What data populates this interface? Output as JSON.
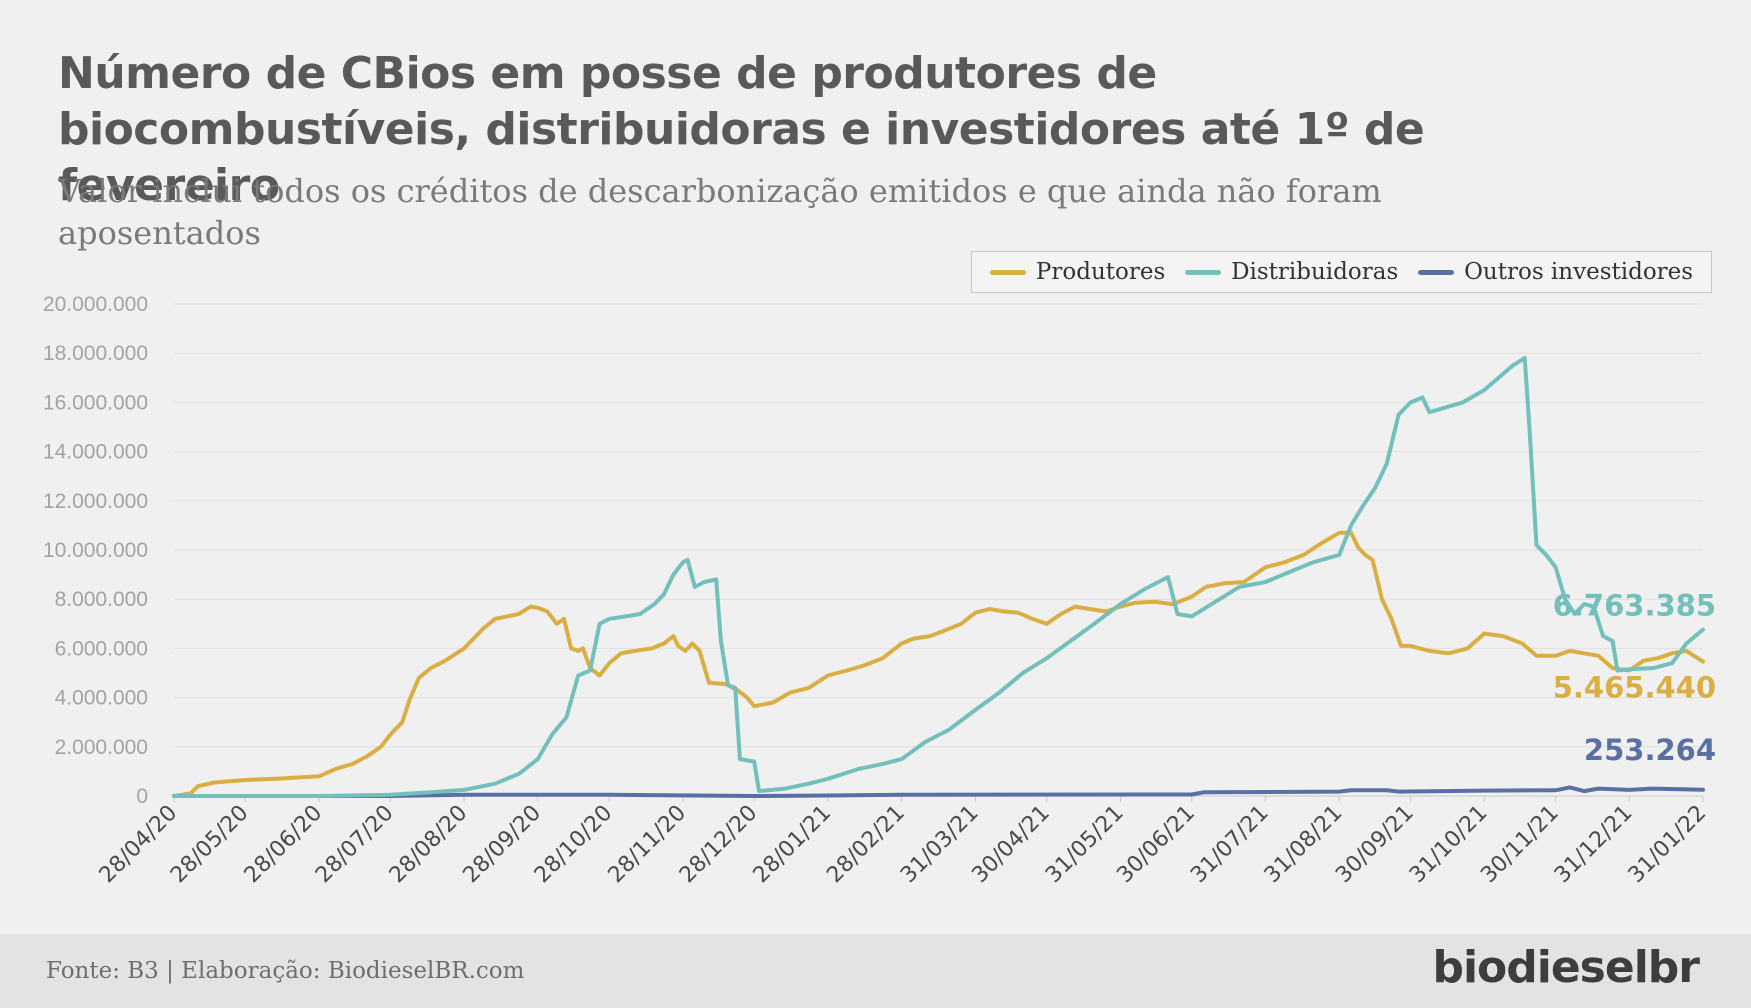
{
  "header": {
    "title": "Número de CBios em posse de produtores de biocombustíveis, distribuidoras e investidores até 1º de fevereiro",
    "subtitle": "Valor inclui todos os créditos de descarbonização emitidos e que ainda não foram aposentados"
  },
  "footer": {
    "source": "Fonte: B3 | Elaboração: BiodieselBR.com",
    "brand": "biodieselbr"
  },
  "chart_data": {
    "type": "line",
    "ylim": [
      0,
      20000000
    ],
    "yticks": [
      "0",
      "2.000.000",
      "4.000.000",
      "6.000.000",
      "8.000.000",
      "10.000.000",
      "12.000.000",
      "14.000.000",
      "16.000.000",
      "18.000.000",
      "20.000.000"
    ],
    "xticks": [
      "28/04/20",
      "28/05/20",
      "28/06/20",
      "28/07/20",
      "28/08/20",
      "28/09/20",
      "28/10/20",
      "28/11/20",
      "28/12/20",
      "28/01/21",
      "28/02/21",
      "31/03/21",
      "30/04/21",
      "31/05/21",
      "30/06/21",
      "31/07/21",
      "31/08/21",
      "30/09/21",
      "31/10/21",
      "30/11/21",
      "31/12/21",
      "31/01/22"
    ],
    "grid": true,
    "legend_position": "top-right",
    "series": [
      {
        "name": "Produtores",
        "color": "#d9ae43",
        "end_label": "5.465.440",
        "points": [
          [
            "28/04/20",
            0
          ],
          [
            "05/05/20",
            100000
          ],
          [
            "08/05/20",
            400000
          ],
          [
            "15/05/20",
            550000
          ],
          [
            "28/05/20",
            650000
          ],
          [
            "10/06/20",
            700000
          ],
          [
            "28/06/20",
            800000
          ],
          [
            "05/07/20",
            1100000
          ],
          [
            "12/07/20",
            1300000
          ],
          [
            "18/07/20",
            1600000
          ],
          [
            "24/07/20",
            2000000
          ],
          [
            "28/07/20",
            2500000
          ],
          [
            "02/08/20",
            3000000
          ],
          [
            "05/08/20",
            3900000
          ],
          [
            "09/08/20",
            4800000
          ],
          [
            "14/08/20",
            5200000
          ],
          [
            "20/08/20",
            5500000
          ],
          [
            "28/08/20",
            6000000
          ],
          [
            "05/09/20",
            6800000
          ],
          [
            "10/09/20",
            7200000
          ],
          [
            "20/09/20",
            7400000
          ],
          [
            "25/09/20",
            7700000
          ],
          [
            "28/09/20",
            7650000
          ],
          [
            "02/10/20",
            7500000
          ],
          [
            "06/10/20",
            7000000
          ],
          [
            "09/10/20",
            7200000
          ],
          [
            "12/10/20",
            6000000
          ],
          [
            "15/10/20",
            5900000
          ],
          [
            "17/10/20",
            6000000
          ],
          [
            "20/10/20",
            5200000
          ],
          [
            "24/10/20",
            4900000
          ],
          [
            "28/10/20",
            5400000
          ],
          [
            "02/11/20",
            5800000
          ],
          [
            "08/11/20",
            5900000
          ],
          [
            "15/11/20",
            6000000
          ],
          [
            "20/11/20",
            6200000
          ],
          [
            "24/11/20",
            6500000
          ],
          [
            "26/11/20",
            6100000
          ],
          [
            "29/11/20",
            5900000
          ],
          [
            "02/12/20",
            6200000
          ],
          [
            "05/12/20",
            5900000
          ],
          [
            "09/12/20",
            4600000
          ],
          [
            "16/12/20",
            4550000
          ],
          [
            "21/12/20",
            4300000
          ],
          [
            "25/12/20",
            4000000
          ],
          [
            "28/12/20",
            3650000
          ],
          [
            "05/01/21",
            3800000
          ],
          [
            "12/01/21",
            4200000
          ],
          [
            "20/01/21",
            4400000
          ],
          [
            "28/01/21",
            4900000
          ],
          [
            "05/02/21",
            5100000
          ],
          [
            "12/02/21",
            5300000
          ],
          [
            "20/02/21",
            5600000
          ],
          [
            "28/02/21",
            6200000
          ],
          [
            "05/03/21",
            6400000
          ],
          [
            "12/03/21",
            6500000
          ],
          [
            "20/03/21",
            6800000
          ],
          [
            "25/03/21",
            7000000
          ],
          [
            "31/03/21",
            7450000
          ],
          [
            "06/04/21",
            7600000
          ],
          [
            "12/04/21",
            7500000
          ],
          [
            "18/04/21",
            7450000
          ],
          [
            "24/04/21",
            7200000
          ],
          [
            "30/04/21",
            7000000
          ],
          [
            "06/05/21",
            7400000
          ],
          [
            "12/05/21",
            7700000
          ],
          [
            "18/05/21",
            7600000
          ],
          [
            "25/05/21",
            7500000
          ],
          [
            "31/05/21",
            7700000
          ],
          [
            "06/06/21",
            7850000
          ],
          [
            "14/06/21",
            7900000
          ],
          [
            "22/06/21",
            7800000
          ],
          [
            "30/06/21",
            8100000
          ],
          [
            "06/07/21",
            8500000
          ],
          [
            "14/07/21",
            8650000
          ],
          [
            "22/07/21",
            8700000
          ],
          [
            "31/07/21",
            9300000
          ],
          [
            "08/08/21",
            9500000
          ],
          [
            "16/08/21",
            9800000
          ],
          [
            "24/08/21",
            10300000
          ],
          [
            "31/08/21",
            10700000
          ],
          [
            "05/09/21",
            10700000
          ],
          [
            "08/09/21",
            10100000
          ],
          [
            "11/09/21",
            9800000
          ],
          [
            "14/09/21",
            9600000
          ],
          [
            "18/09/21",
            8000000
          ],
          [
            "22/09/21",
            7200000
          ],
          [
            "26/09/21",
            6100000
          ],
          [
            "30/09/21",
            6100000
          ],
          [
            "08/10/21",
            5900000
          ],
          [
            "16/10/21",
            5800000
          ],
          [
            "24/10/21",
            6000000
          ],
          [
            "31/10/21",
            6600000
          ],
          [
            "08/11/21",
            6500000
          ],
          [
            "16/11/21",
            6200000
          ],
          [
            "22/11/21",
            5700000
          ],
          [
            "30/11/21",
            5700000
          ],
          [
            "06/12/21",
            5900000
          ],
          [
            "12/12/21",
            5800000
          ],
          [
            "18/12/21",
            5700000
          ],
          [
            "24/12/21",
            5200000
          ],
          [
            "31/12/21",
            5100000
          ],
          [
            "06/01/22",
            5500000
          ],
          [
            "12/01/22",
            5600000
          ],
          [
            "18/01/22",
            5800000
          ],
          [
            "24/01/22",
            5900000
          ],
          [
            "31/01/22",
            5465440
          ]
        ]
      },
      {
        "name": "Distribuidoras",
        "color": "#72bfbc",
        "end_label": "6.763.385",
        "points": [
          [
            "28/04/20",
            0
          ],
          [
            "28/06/20",
            0
          ],
          [
            "28/07/20",
            50000
          ],
          [
            "14/08/20",
            150000
          ],
          [
            "28/08/20",
            250000
          ],
          [
            "10/09/20",
            500000
          ],
          [
            "20/09/20",
            900000
          ],
          [
            "28/09/20",
            1500000
          ],
          [
            "04/10/20",
            2500000
          ],
          [
            "10/10/20",
            3200000
          ],
          [
            "15/10/20",
            4900000
          ],
          [
            "20/10/20",
            5100000
          ],
          [
            "24/10/20",
            7000000
          ],
          [
            "28/10/20",
            7200000
          ],
          [
            "04/11/20",
            7300000
          ],
          [
            "10/11/20",
            7400000
          ],
          [
            "16/11/20",
            7800000
          ],
          [
            "20/11/20",
            8200000
          ],
          [
            "24/11/20",
            9000000
          ],
          [
            "28/11/20",
            9500000
          ],
          [
            "30/11/20",
            9600000
          ],
          [
            "03/12/20",
            8500000
          ],
          [
            "07/12/20",
            8700000
          ],
          [
            "12/12/20",
            8800000
          ],
          [
            "14/12/20",
            6300000
          ],
          [
            "17/12/20",
            4500000
          ],
          [
            "20/12/20",
            4400000
          ],
          [
            "22/12/20",
            1500000
          ],
          [
            "28/12/20",
            1400000
          ],
          [
            "30/12/20",
            200000
          ],
          [
            "10/01/21",
            300000
          ],
          [
            "20/01/21",
            500000
          ],
          [
            "28/01/21",
            700000
          ],
          [
            "10/02/21",
            1100000
          ],
          [
            "20/02/21",
            1300000
          ],
          [
            "28/02/21",
            1500000
          ],
          [
            "10/03/21",
            2200000
          ],
          [
            "20/03/21",
            2700000
          ],
          [
            "31/03/21",
            3500000
          ],
          [
            "10/04/21",
            4200000
          ],
          [
            "20/04/21",
            5000000
          ],
          [
            "30/04/21",
            5600000
          ],
          [
            "10/05/21",
            6300000
          ],
          [
            "20/05/21",
            7000000
          ],
          [
            "31/05/21",
            7800000
          ],
          [
            "10/06/21",
            8400000
          ],
          [
            "20/06/21",
            8900000
          ],
          [
            "24/06/21",
            7400000
          ],
          [
            "30/06/21",
            7300000
          ],
          [
            "10/07/21",
            7900000
          ],
          [
            "20/07/21",
            8500000
          ],
          [
            "31/07/21",
            8700000
          ],
          [
            "10/08/21",
            9100000
          ],
          [
            "20/08/21",
            9500000
          ],
          [
            "31/08/21",
            9800000
          ],
          [
            "05/09/21",
            11000000
          ],
          [
            "10/09/21",
            11800000
          ],
          [
            "15/09/21",
            12500000
          ],
          [
            "20/09/21",
            13500000
          ],
          [
            "25/09/21",
            15500000
          ],
          [
            "30/09/21",
            16000000
          ],
          [
            "05/10/21",
            16200000
          ],
          [
            "08/10/21",
            15600000
          ],
          [
            "15/10/21",
            15800000
          ],
          [
            "22/10/21",
            16000000
          ],
          [
            "31/10/21",
            16500000
          ],
          [
            "06/11/21",
            17000000
          ],
          [
            "12/11/21",
            17500000
          ],
          [
            "17/11/21",
            17800000
          ],
          [
            "19/11/21",
            15000000
          ],
          [
            "22/11/21",
            10200000
          ],
          [
            "26/11/21",
            9800000
          ],
          [
            "30/11/21",
            9300000
          ],
          [
            "04/12/21",
            8000000
          ],
          [
            "08/12/21",
            7400000
          ],
          [
            "12/12/21",
            7800000
          ],
          [
            "16/12/21",
            7700000
          ],
          [
            "20/12/21",
            6500000
          ],
          [
            "24/12/21",
            6300000
          ],
          [
            "26/12/21",
            5100000
          ],
          [
            "31/12/21",
            5150000
          ],
          [
            "10/01/22",
            5200000
          ],
          [
            "18/01/22",
            5400000
          ],
          [
            "24/01/22",
            6200000
          ],
          [
            "31/01/22",
            6763385
          ]
        ]
      },
      {
        "name": "Outros investidores",
        "color": "#5a6fa3",
        "end_label": "253.264",
        "points": [
          [
            "28/04/20",
            0
          ],
          [
            "28/07/20",
            0
          ],
          [
            "28/08/20",
            50000
          ],
          [
            "28/10/20",
            50000
          ],
          [
            "28/12/20",
            0
          ],
          [
            "28/01/21",
            20000
          ],
          [
            "28/02/21",
            50000
          ],
          [
            "30/06/21",
            60000
          ],
          [
            "05/07/21",
            150000
          ],
          [
            "31/08/21",
            180000
          ],
          [
            "05/09/21",
            230000
          ],
          [
            "20/09/21",
            230000
          ],
          [
            "25/09/21",
            180000
          ],
          [
            "31/10/21",
            220000
          ],
          [
            "30/11/21",
            230000
          ],
          [
            "06/12/21",
            350000
          ],
          [
            "12/12/21",
            200000
          ],
          [
            "18/12/21",
            300000
          ],
          [
            "31/12/21",
            250000
          ],
          [
            "10/01/22",
            300000
          ],
          [
            "31/01/22",
            253264
          ]
        ]
      }
    ]
  }
}
